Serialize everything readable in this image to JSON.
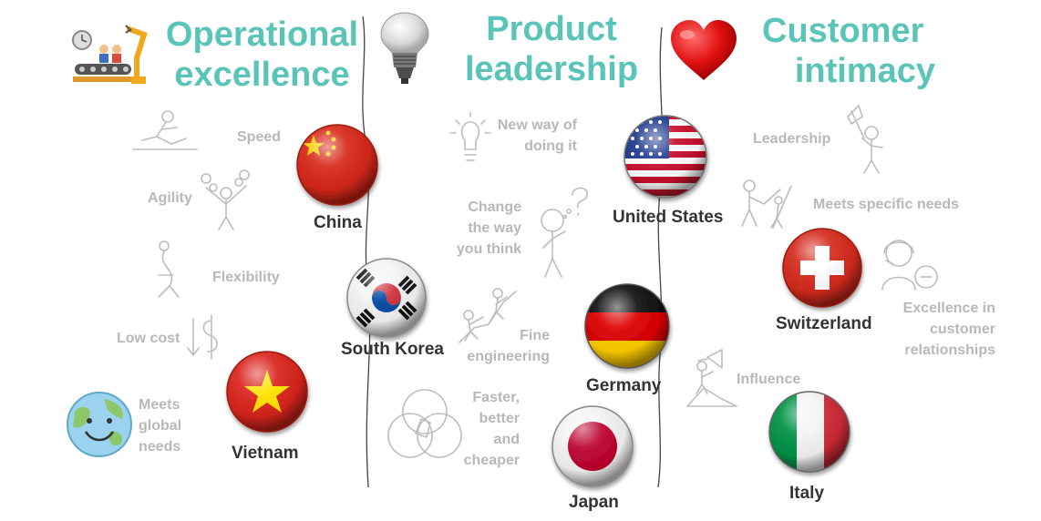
{
  "columns": {
    "operational": {
      "line1": "Operational",
      "line2": "excellence"
    },
    "product": {
      "line1": "Product",
      "line2": "leadership"
    },
    "customer": {
      "line1": "Customer",
      "line2": "intimacy"
    }
  },
  "attributes": {
    "speed": "Speed",
    "agility": "Agility",
    "flexibility": "Flexibility",
    "low_cost": "Low cost",
    "meets_global_1": "Meets",
    "meets_global_2": "global",
    "meets_global_3": "needs",
    "new_way_1": "New way of",
    "new_way_2": "doing it",
    "change_1": "Change",
    "change_2": "the way",
    "change_3": "you think",
    "fine_1": "Fine",
    "fine_2": "engineering",
    "faster_1": "Faster,",
    "faster_2": "better",
    "faster_3": "and",
    "faster_4": "cheaper",
    "leadership": "Leadership",
    "meets_specific": "Meets specific needs",
    "excellence_1": "Excellence in",
    "excellence_2": "customer",
    "excellence_3": "relationships",
    "influence": "Influence"
  },
  "countries": {
    "china": "China",
    "south_korea": "South Korea",
    "vietnam": "Vietnam",
    "united_states": "United States",
    "germany": "Germany",
    "japan": "Japan",
    "switzerland": "Switzerland",
    "italy": "Italy"
  },
  "colors": {
    "title": "#5bc4b8",
    "attribute": "#b8b8b8",
    "country": "#333333",
    "divider": "#444444"
  },
  "icons": {
    "operational": "factory-robot-icon",
    "product": "light-bulb-icon",
    "customer": "heart-icon"
  }
}
